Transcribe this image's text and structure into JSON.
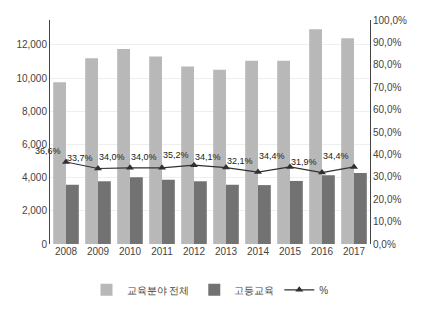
{
  "chart_data": {
    "type": "bar",
    "categories": [
      "2008",
      "2009",
      "2010",
      "2011",
      "2012",
      "2013",
      "2014",
      "2015",
      "2016",
      "2017"
    ],
    "series": [
      {
        "name": "교육분야 전체",
        "type": "bar",
        "color": "#b8b8b8",
        "values": [
          9750,
          11200,
          11750,
          11300,
          10700,
          10500,
          11050,
          11050,
          12950,
          12400
        ]
      },
      {
        "name": "고등교육",
        "type": "bar",
        "color": "#727272",
        "values": [
          3570,
          3780,
          4030,
          3870,
          3780,
          3570,
          3550,
          3800,
          4140,
          4280
        ]
      },
      {
        "name": "%",
        "type": "line",
        "axis": "y2",
        "color": "#303030",
        "marker": "triangle-up",
        "data_labels": true,
        "values": [
          36.6,
          33.7,
          34.0,
          34.0,
          35.2,
          34.1,
          32.1,
          34.4,
          31.9,
          34.4
        ],
        "value_labels": [
          "36,6%",
          "33,7%",
          "34,0%",
          "34,0%",
          "35,2%",
          "34,1%",
          "32,1%",
          "34,4%",
          "31,9%",
          "34,4%"
        ]
      }
    ],
    "ylim": [
      0,
      13500
    ],
    "yticks": [
      0,
      {
        "value": 2000,
        "label": "2,000"
      },
      {
        "value": 4000,
        "label": "4,000"
      },
      {
        "value": 6000,
        "label": "6,000"
      },
      {
        "value": 8000,
        "label": "8,000"
      },
      {
        "value": 10000,
        "label": "10,000"
      },
      {
        "value": 12000,
        "label": "12,000"
      }
    ],
    "y2lim": [
      0,
      100
    ],
    "y2ticks": [
      {
        "value": 0,
        "label": "0,0%"
      },
      {
        "value": 10,
        "label": "10,0%"
      },
      {
        "value": 20,
        "label": "20,0%"
      },
      {
        "value": 30,
        "label": "30,0%"
      },
      {
        "value": 40,
        "label": "40,0%"
      },
      {
        "value": 50,
        "label": "50,0%"
      },
      {
        "value": 60,
        "label": "60,0%"
      },
      {
        "value": 70,
        "label": "70,0%"
      },
      {
        "value": 80,
        "label": "80,0%"
      },
      {
        "value": 90,
        "label": "90,0%"
      },
      {
        "value": 100,
        "label": "100,0%"
      }
    ],
    "grid": true,
    "legend": "bottom"
  }
}
